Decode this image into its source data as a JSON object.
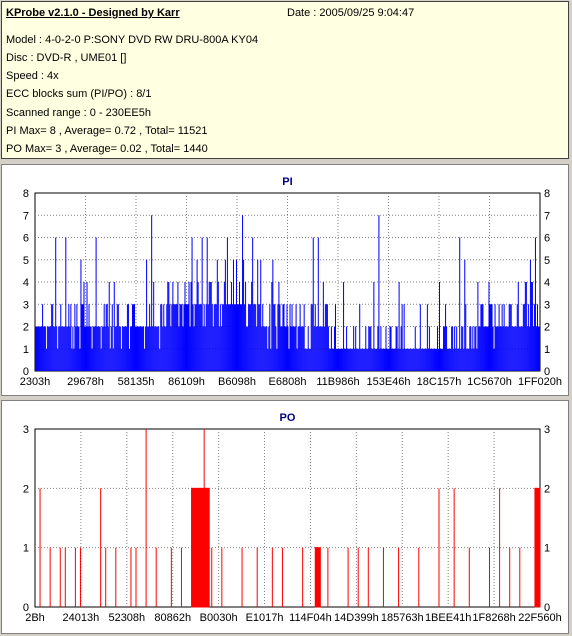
{
  "header": {
    "app_title": "KProbe v2.1.0 - Designed by Karr",
    "date": "Date : 2005/09/25 9:04:47",
    "lines": [
      "Model : 4-0-2-0 P:SONY    DVD RW DRU-800A  KY04",
      "Disc : DVD-R , UME01 []",
      "Speed : 4x",
      "ECC blocks sum (PI/PO) : 8/1",
      "Scanned range : 0 - 230EE5h",
      "PI Max= 8 , Average= 0.72 , Total= 11521",
      "PO Max= 3 , Average= 0.02 , Total= 1440"
    ]
  },
  "colors": {
    "pi": "#0000ff",
    "po": "#ff0000",
    "grid": "#808080",
    "title": "#000080"
  },
  "chart_data": [
    {
      "type": "bar",
      "title": "PI",
      "ylim": [
        0,
        8
      ],
      "yticks": [
        0,
        1,
        2,
        3,
        4,
        5,
        6,
        7,
        8
      ],
      "xticks": [
        "2303h",
        "29678h",
        "58135h",
        "86109h",
        "B6098h",
        "E6808h",
        "11B986h",
        "153E46h",
        "18C157h",
        "1C5670h",
        "1FF020h"
      ],
      "grid": true,
      "bins": 500,
      "baseline_profile": [
        {
          "from": 0.0,
          "to": 0.16,
          "value": 2
        },
        {
          "from": 0.16,
          "to": 0.27,
          "value": 2
        },
        {
          "from": 0.27,
          "to": 0.45,
          "value": 3
        },
        {
          "from": 0.45,
          "to": 0.58,
          "value": 2
        },
        {
          "from": 0.58,
          "to": 0.75,
          "value": 1
        },
        {
          "from": 0.75,
          "to": 0.87,
          "value": 1
        },
        {
          "from": 0.87,
          "to": 1.0,
          "value": 2
        }
      ],
      "peaks": [
        {
          "x": 0.005,
          "y": 5
        },
        {
          "x": 0.045,
          "y": 8
        },
        {
          "x": 0.04,
          "y": 6
        },
        {
          "x": 0.06,
          "y": 6
        },
        {
          "x": 0.09,
          "y": 5
        },
        {
          "x": 0.12,
          "y": 6
        },
        {
          "x": 0.22,
          "y": 5
        },
        {
          "x": 0.225,
          "y": 6
        },
        {
          "x": 0.23,
          "y": 7
        },
        {
          "x": 0.31,
          "y": 6
        },
        {
          "x": 0.315,
          "y": 7
        },
        {
          "x": 0.33,
          "y": 6
        },
        {
          "x": 0.335,
          "y": 8
        },
        {
          "x": 0.34,
          "y": 6
        },
        {
          "x": 0.36,
          "y": 5
        },
        {
          "x": 0.38,
          "y": 6
        },
        {
          "x": 0.41,
          "y": 7
        },
        {
          "x": 0.43,
          "y": 6
        },
        {
          "x": 0.44,
          "y": 5
        },
        {
          "x": 0.47,
          "y": 5
        },
        {
          "x": 0.55,
          "y": 6
        },
        {
          "x": 0.56,
          "y": 6
        },
        {
          "x": 0.61,
          "y": 4
        },
        {
          "x": 0.67,
          "y": 4
        },
        {
          "x": 0.68,
          "y": 7
        },
        {
          "x": 0.72,
          "y": 4
        },
        {
          "x": 0.8,
          "y": 4
        },
        {
          "x": 0.84,
          "y": 6
        },
        {
          "x": 0.845,
          "y": 6
        },
        {
          "x": 0.85,
          "y": 5
        },
        {
          "x": 0.98,
          "y": 5
        },
        {
          "x": 0.99,
          "y": 6
        },
        {
          "x": 0.995,
          "y": 5
        }
      ],
      "max": 8
    },
    {
      "type": "bar",
      "title": "PO",
      "ylim": [
        0,
        3
      ],
      "yticks": [
        0,
        1,
        2,
        3
      ],
      "xticks": [
        "2Bh",
        "24013h",
        "52308h",
        "80862h",
        "B0030h",
        "E1017h",
        "114F04h",
        "14D399h",
        "185763h",
        "1BEE41h",
        "1F8268h",
        "22F560h"
      ],
      "grid": true,
      "dense_regions": [
        {
          "from": 0.31,
          "to": 0.345,
          "value": 2
        },
        {
          "from": 0.555,
          "to": 0.565,
          "value": 1
        },
        {
          "from": 0.99,
          "to": 1.0,
          "value": 2
        }
      ],
      "spikes": [
        {
          "x": 0.01,
          "y": 2
        },
        {
          "x": 0.03,
          "y": 1
        },
        {
          "x": 0.05,
          "y": 1
        },
        {
          "x": 0.06,
          "y": 1
        },
        {
          "x": 0.08,
          "y": 1
        },
        {
          "x": 0.09,
          "y": 1
        },
        {
          "x": 0.13,
          "y": 2
        },
        {
          "x": 0.14,
          "y": 1
        },
        {
          "x": 0.16,
          "y": 1
        },
        {
          "x": 0.19,
          "y": 1
        },
        {
          "x": 0.2,
          "y": 1
        },
        {
          "x": 0.22,
          "y": 3
        },
        {
          "x": 0.24,
          "y": 1
        },
        {
          "x": 0.27,
          "y": 1
        },
        {
          "x": 0.29,
          "y": 1
        },
        {
          "x": 0.335,
          "y": 3
        },
        {
          "x": 0.35,
          "y": 1
        },
        {
          "x": 0.37,
          "y": 1
        },
        {
          "x": 0.41,
          "y": 1
        },
        {
          "x": 0.44,
          "y": 1
        },
        {
          "x": 0.47,
          "y": 1
        },
        {
          "x": 0.49,
          "y": 1
        },
        {
          "x": 0.53,
          "y": 1
        },
        {
          "x": 0.58,
          "y": 1
        },
        {
          "x": 0.62,
          "y": 1
        },
        {
          "x": 0.64,
          "y": 1
        },
        {
          "x": 0.66,
          "y": 1
        },
        {
          "x": 0.69,
          "y": 1
        },
        {
          "x": 0.72,
          "y": 1
        },
        {
          "x": 0.76,
          "y": 1
        },
        {
          "x": 0.8,
          "y": 2
        },
        {
          "x": 0.83,
          "y": 2
        },
        {
          "x": 0.86,
          "y": 1
        },
        {
          "x": 0.9,
          "y": 1
        },
        {
          "x": 0.92,
          "y": 2
        },
        {
          "x": 0.94,
          "y": 1
        },
        {
          "x": 0.96,
          "y": 1
        }
      ],
      "max": 3
    }
  ]
}
